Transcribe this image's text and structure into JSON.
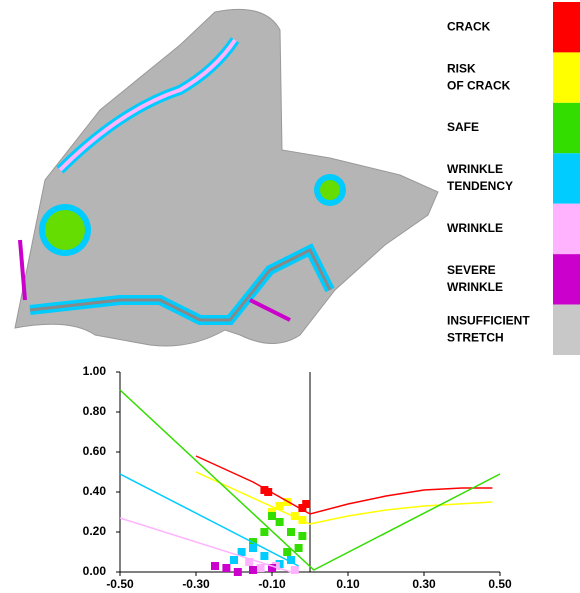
{
  "chart_data": {
    "type": "line",
    "legend": [
      {
        "label": [
          "CRACK"
        ],
        "color": "#ff0000"
      },
      {
        "label": [
          "RISK",
          "OF CRACK"
        ],
        "color": "#ffff00"
      },
      {
        "label": [
          "SAFE"
        ],
        "color": "#33dd00"
      },
      {
        "label": [
          "WRINKLE",
          "TENDENCY"
        ],
        "color": "#00ccff"
      },
      {
        "label": [
          "WRINKLE"
        ],
        "color": "#ffb3ff"
      },
      {
        "label": [
          "SEVERE",
          "WRINKLE"
        ],
        "color": "#cc00cc"
      },
      {
        "label": [
          "INSUFFICIENT",
          "STRETCH"
        ],
        "color": "#c8c8c8"
      }
    ],
    "xlim": [
      -0.5,
      0.5
    ],
    "ylim": [
      0,
      1
    ],
    "xticks": [
      {
        "value": -0.5,
        "label": "-0.50"
      },
      {
        "value": -0.3,
        "label": "-0.30"
      },
      {
        "value": -0.1,
        "label": "-0.10"
      },
      {
        "value": 0.1,
        "label": "0.10"
      },
      {
        "value": 0.3,
        "label": "0.30"
      },
      {
        "value": 0.5,
        "label": "0.50"
      }
    ],
    "yticks": [
      {
        "value": 0,
        "label": "0.00"
      },
      {
        "value": 0.2,
        "label": "0.20"
      },
      {
        "value": 0.4,
        "label": "0.40"
      },
      {
        "value": 0.6,
        "label": "0.60"
      },
      {
        "value": 0.8,
        "label": "0.80"
      },
      {
        "value": 1,
        "label": "1.00"
      }
    ],
    "series": [
      {
        "color": "#ff0000",
        "x": [
          -0.3,
          -0.15,
          0,
          0.1,
          0.2,
          0.3,
          0.4,
          0.48
        ],
        "values": [
          0.58,
          0.45,
          0.29,
          0.34,
          0.38,
          0.41,
          0.42,
          0.42
        ]
      },
      {
        "color": "#ffff00",
        "x": [
          -0.3,
          0,
          0.1,
          0.2,
          0.3,
          0.48
        ],
        "values": [
          0.5,
          0.24,
          0.28,
          0.31,
          0.33,
          0.35
        ]
      },
      {
        "color": "#33dd00",
        "x": [
          -0.5,
          0.01,
          0.5
        ],
        "values": [
          0.91,
          0.01,
          0.49
        ]
      },
      {
        "color": "#00ccff",
        "x": [
          -0.5,
          -0.03
        ],
        "values": [
          0.49,
          0.03
        ]
      },
      {
        "color": "#ffb3ff",
        "x": [
          -0.5,
          -0.05
        ],
        "values": [
          0.27,
          0
        ]
      }
    ],
    "scatter": [
      {
        "color": "#ff0000",
        "x": [
          -0.12,
          -0.11,
          -0.02,
          -0.01
        ],
        "values": [
          0.41,
          0.4,
          0.32,
          0.34
        ]
      },
      {
        "color": "#ffff00",
        "x": [
          -0.06,
          -0.1,
          -0.04,
          -0.08,
          -0.02
        ],
        "values": [
          0.35,
          0.3,
          0.28,
          0.33,
          0.26
        ]
      },
      {
        "color": "#33dd00",
        "x": [
          -0.08,
          -0.05,
          -0.12,
          -0.03,
          -0.15,
          -0.02,
          -0.1,
          -0.06
        ],
        "values": [
          0.25,
          0.2,
          0.2,
          0.12,
          0.15,
          0.18,
          0.28,
          0.1
        ]
      },
      {
        "color": "#00ccff",
        "x": [
          -0.18,
          -0.12,
          -0.2,
          -0.08,
          -0.15,
          -0.05
        ],
        "values": [
          0.1,
          0.08,
          0.06,
          0.04,
          0.12,
          0.06
        ]
      },
      {
        "color": "#ffb3ff",
        "x": [
          -0.16,
          -0.09,
          -0.13,
          -0.04
        ],
        "values": [
          0.05,
          0.03,
          0.02,
          0.01
        ]
      },
      {
        "color": "#cc00cc",
        "x": [
          -0.22,
          -0.15,
          -0.25,
          -0.1,
          -0.19
        ],
        "values": [
          0.02,
          0.01,
          0.03,
          0.02,
          0.0
        ]
      }
    ]
  }
}
